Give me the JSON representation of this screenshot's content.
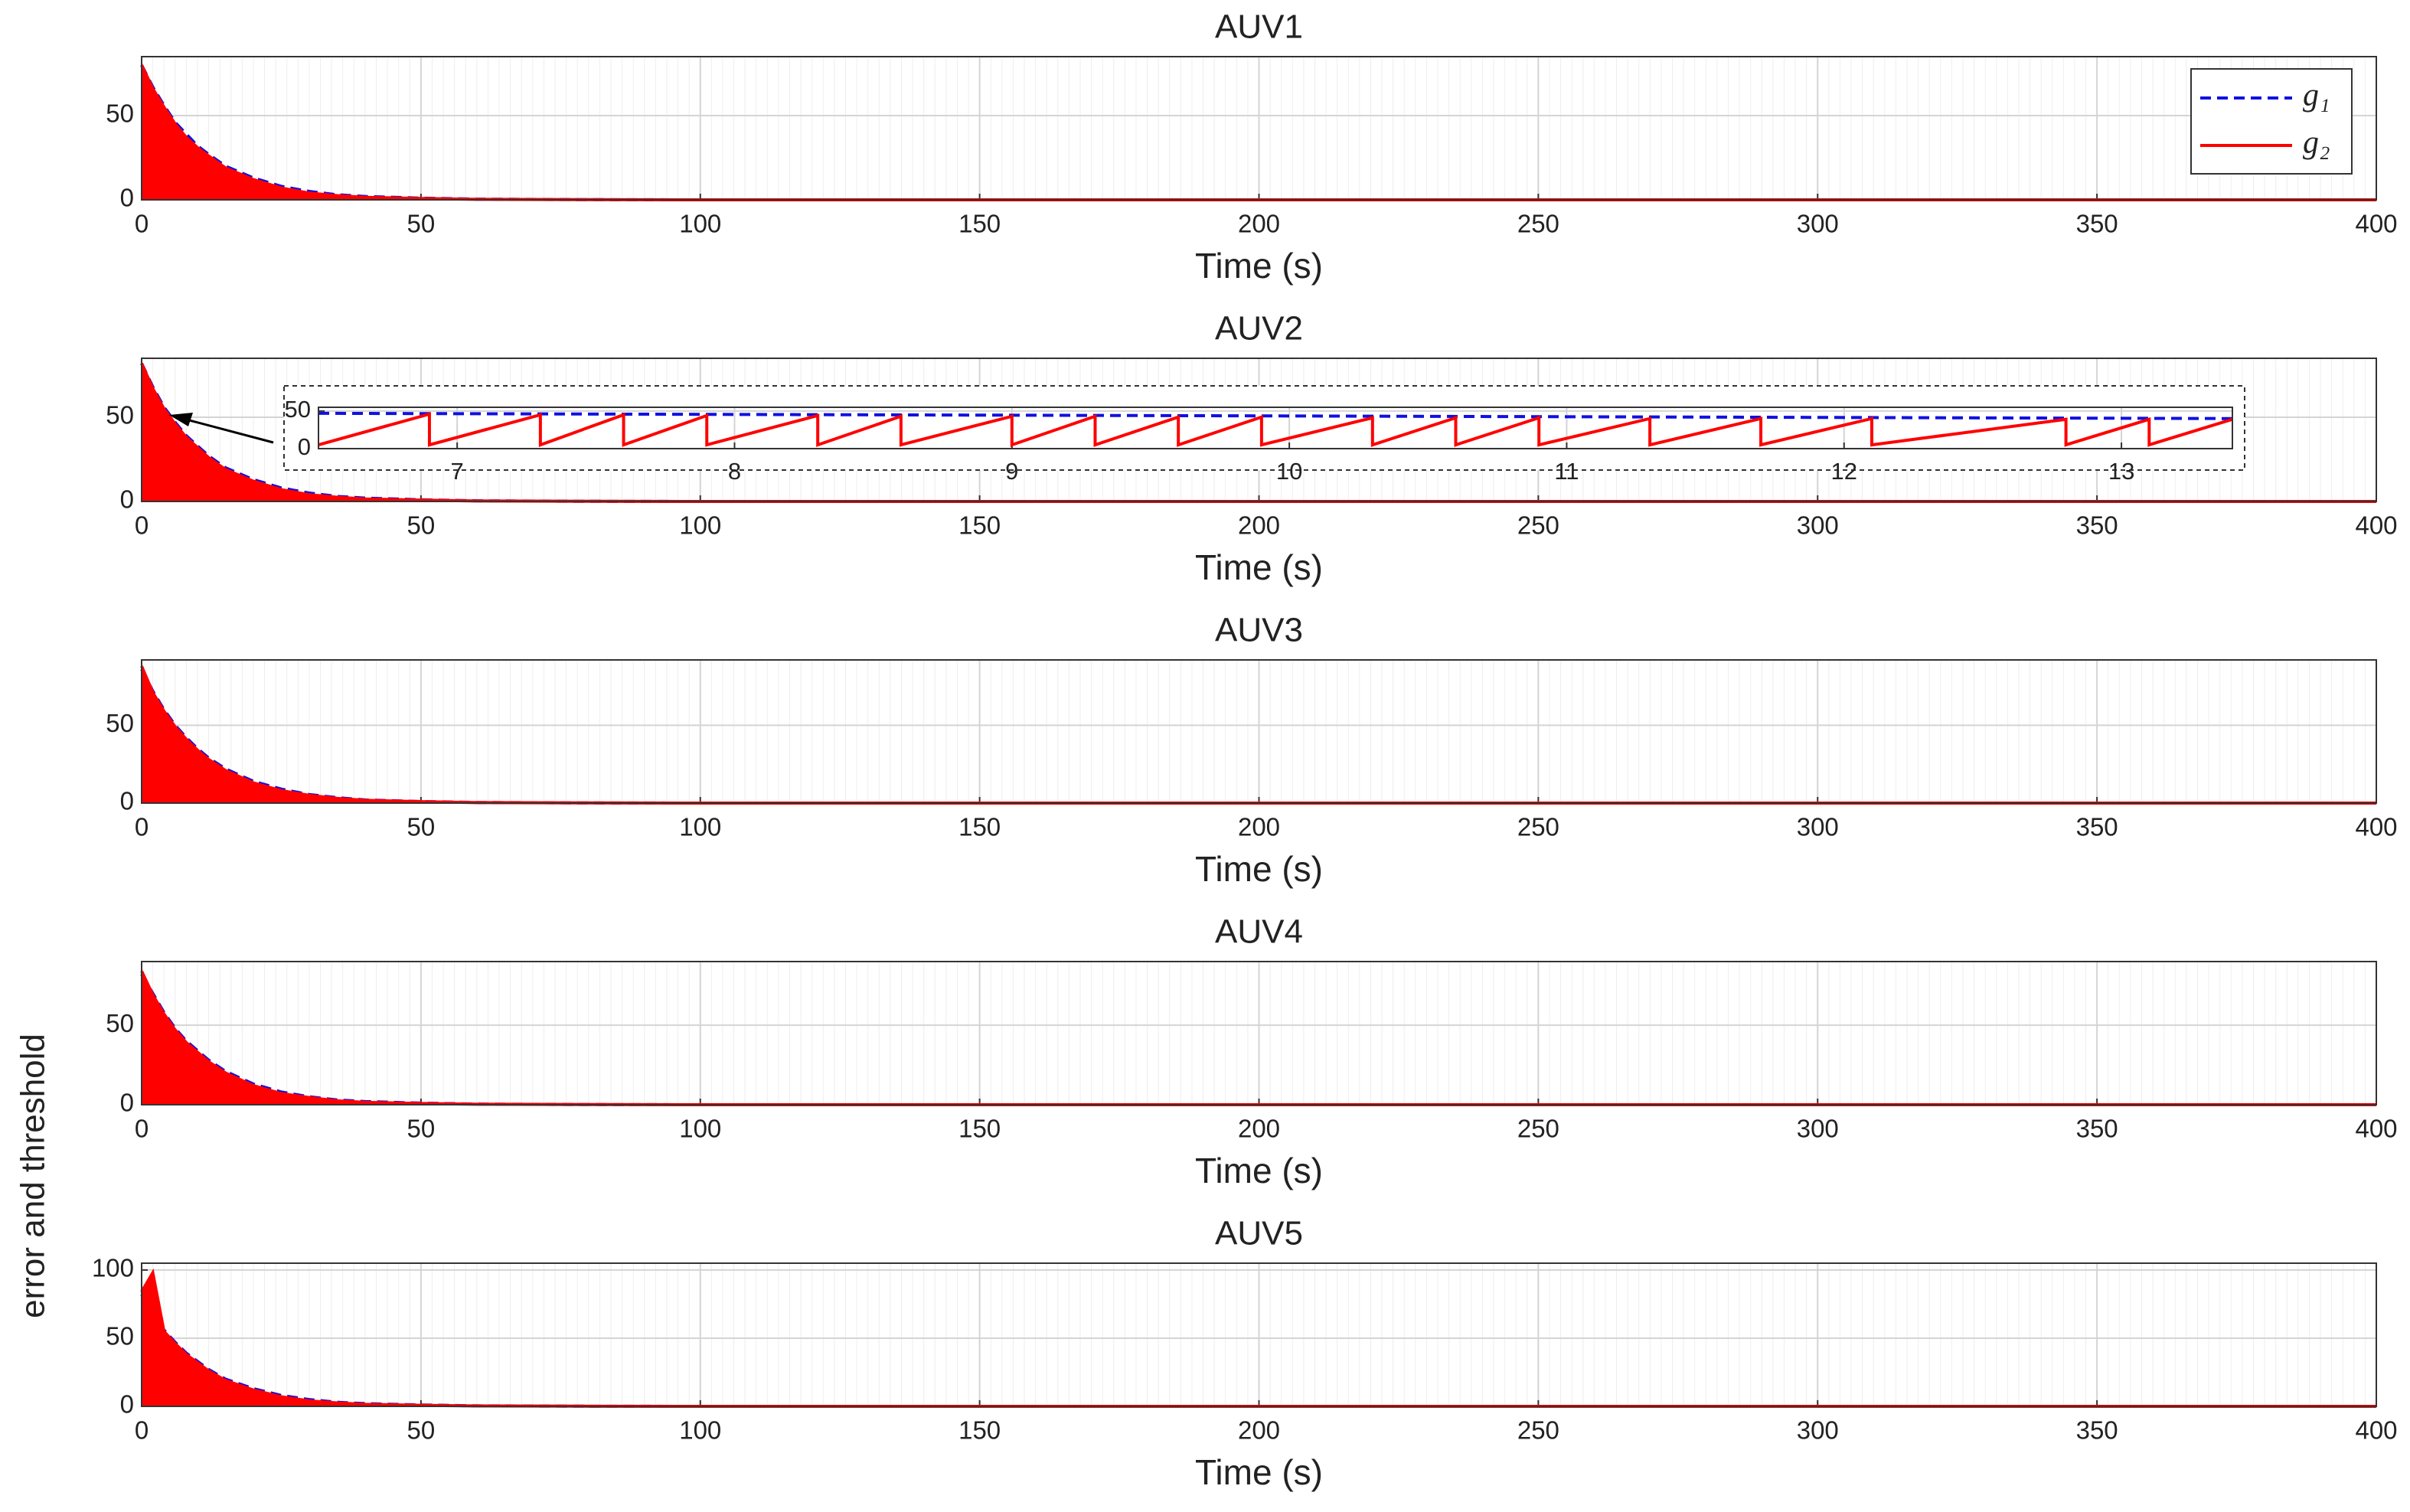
{
  "ylabel": "error and threshold",
  "chart_data": [
    {
      "type": "line",
      "title": "AUV1",
      "xlabel": "Time (s)",
      "xlim": [
        0,
        400
      ],
      "xticks": [
        0,
        50,
        100,
        150,
        200,
        250,
        300,
        350,
        400
      ],
      "ylim": [
        0,
        85
      ],
      "yticks": [
        0,
        50
      ],
      "grid": true,
      "legend": "upper right",
      "x": [
        0,
        2,
        4,
        6,
        8,
        10,
        12,
        15,
        20,
        25,
        30,
        35,
        40,
        50,
        60,
        80,
        100,
        150,
        200,
        250,
        300,
        350,
        400
      ],
      "series": [
        {
          "name": "g₁",
          "color": "#1010e0",
          "style": "dashed",
          "values": [
            80,
            67,
            56,
            46,
            39,
            32,
            27,
            20,
            13,
            8,
            5,
            3,
            2,
            1,
            0.4,
            0.1,
            0,
            0,
            0,
            0,
            0,
            0,
            0
          ]
        },
        {
          "name": "g₂",
          "color": "#ff0000",
          "style": "solid",
          "fill": true,
          "values": [
            80,
            66,
            55,
            45,
            37,
            31,
            26,
            19,
            12,
            7,
            4,
            2.5,
            1.5,
            0.8,
            0.3,
            0.1,
            0,
            0,
            0,
            0,
            0,
            0,
            0
          ]
        }
      ]
    },
    {
      "type": "line",
      "title": "AUV2",
      "xlabel": "Time (s)",
      "xlim": [
        0,
        400
      ],
      "xticks": [
        0,
        50,
        100,
        150,
        200,
        250,
        300,
        350,
        400
      ],
      "ylim": [
        0,
        85
      ],
      "yticks": [
        0,
        50
      ],
      "grid": true,
      "x": [
        0,
        2,
        4,
        6,
        8,
        10,
        12,
        15,
        20,
        25,
        30,
        35,
        40,
        50,
        60,
        80,
        100,
        150,
        200,
        250,
        300,
        350,
        400
      ],
      "series": [
        {
          "color": "#1010e0",
          "style": "dashed",
          "values": [
            82,
            68,
            56,
            47,
            39,
            33,
            27,
            20,
            13,
            8,
            5,
            3,
            2,
            1,
            0.4,
            0.1,
            0,
            0,
            0,
            0,
            0,
            0,
            0
          ]
        },
        {
          "color": "#ff0000",
          "style": "solid",
          "fill": true,
          "values": [
            82,
            67,
            55,
            46,
            38,
            32,
            26,
            19,
            12,
            7,
            4,
            2.5,
            1.5,
            0.8,
            0.3,
            0.1,
            0,
            0,
            0,
            0,
            0,
            0,
            0
          ]
        }
      ],
      "inset": {
        "xlim": [
          6.5,
          13.4
        ],
        "ylim": [
          0,
          55
        ],
        "xticks": [
          7,
          8,
          9,
          10,
          11,
          12,
          13
        ],
        "yticks": [
          0,
          50
        ],
        "grid": true,
        "series": [
          {
            "color": "#1010e0",
            "style": "dashed",
            "x": [
              6.5,
              13.4
            ],
            "values": [
              47,
              40
            ]
          },
          {
            "color": "#ff0000",
            "style": "solid",
            "x": [
              6.5,
              6.9,
              6.9,
              7.3,
              7.3,
              7.6,
              7.6,
              7.9,
              7.9,
              8.3,
              8.3,
              8.6,
              8.6,
              9.0,
              9.0,
              9.3,
              9.3,
              9.6,
              9.6,
              9.9,
              9.9,
              10.3,
              10.3,
              10.6,
              10.6,
              10.9,
              10.9,
              11.3,
              11.3,
              11.7,
              11.7,
              12.1,
              12.1,
              12.8,
              12.8,
              13.1,
              13.1,
              13.4
            ],
            "values": [
              5,
              46,
              5,
              45,
              5,
              45,
              5,
              44,
              5,
              44,
              5,
              43,
              5,
              43,
              5,
              43,
              5,
              42,
              5,
              42,
              5,
              41,
              5,
              41,
              5,
              41,
              5,
              40,
              5,
              40,
              5,
              40,
              5,
              39,
              5,
              39,
              5,
              39
            ]
          }
        ]
      }
    },
    {
      "type": "line",
      "title": "AUV3",
      "xlabel": "Time (s)",
      "xlim": [
        0,
        400
      ],
      "xticks": [
        0,
        50,
        100,
        150,
        200,
        250,
        300,
        350,
        400
      ],
      "ylim": [
        0,
        92
      ],
      "yticks": [
        0,
        50
      ],
      "grid": true,
      "x": [
        0,
        2,
        4,
        6,
        8,
        10,
        12,
        15,
        20,
        25,
        30,
        35,
        40,
        50,
        60,
        80,
        100,
        150,
        200,
        250,
        300,
        350,
        400
      ],
      "series": [
        {
          "color": "#1010e0",
          "style": "dashed",
          "values": [
            86,
            72,
            60,
            50,
            42,
            35,
            29,
            22,
            14,
            9,
            5.5,
            3.5,
            2,
            1,
            0.4,
            0.1,
            0,
            0,
            0,
            0,
            0,
            0,
            0
          ]
        },
        {
          "color": "#ff0000",
          "style": "solid",
          "fill": true,
          "values": [
            88,
            71,
            59,
            49,
            41,
            34,
            28,
            21,
            13,
            8,
            5,
            3,
            1.8,
            0.9,
            0.3,
            0.1,
            0,
            0,
            0,
            0,
            0,
            0,
            0
          ]
        }
      ]
    },
    {
      "type": "line",
      "title": "AUV4",
      "xlabel": "Time (s)",
      "xlim": [
        0,
        400
      ],
      "xticks": [
        0,
        50,
        100,
        150,
        200,
        250,
        300,
        350,
        400
      ],
      "ylim": [
        0,
        90
      ],
      "yticks": [
        0,
        50
      ],
      "grid": true,
      "x": [
        0,
        2,
        4,
        6,
        8,
        10,
        12,
        15,
        20,
        25,
        30,
        35,
        40,
        50,
        60,
        80,
        100,
        150,
        200,
        250,
        300,
        350,
        400
      ],
      "series": [
        {
          "color": "#1010e0",
          "style": "dashed",
          "values": [
            82,
            70,
            58,
            48,
            40,
            34,
            28,
            21,
            13,
            8,
            5,
            3,
            2,
            1,
            0.4,
            0.1,
            0,
            0,
            0,
            0,
            0,
            0,
            0
          ]
        },
        {
          "color": "#ff0000",
          "style": "solid",
          "fill": true,
          "values": [
            84,
            69,
            57,
            47,
            39,
            33,
            27,
            20,
            12,
            7,
            4.5,
            2.5,
            1.5,
            0.8,
            0.3,
            0.1,
            0,
            0,
            0,
            0,
            0,
            0,
            0
          ]
        }
      ]
    },
    {
      "type": "line",
      "title": "AUV5",
      "xlabel": "Time (s)",
      "xlim": [
        0,
        400
      ],
      "xticks": [
        0,
        50,
        100,
        150,
        200,
        250,
        300,
        350,
        400
      ],
      "ylim": [
        0,
        105
      ],
      "yticks": [
        0,
        50,
        100
      ],
      "grid": true,
      "x": [
        0,
        2,
        4,
        6,
        8,
        10,
        12,
        15,
        20,
        25,
        30,
        35,
        40,
        50,
        60,
        80,
        100,
        150,
        200,
        250,
        300,
        350,
        400
      ],
      "series": [
        {
          "color": "#1010e0",
          "style": "dashed",
          "values": [
            82,
            68,
            56,
            47,
            39,
            33,
            27,
            20,
            13,
            8,
            5,
            3,
            2,
            1,
            0.4,
            0.1,
            0,
            0,
            0,
            0,
            0,
            0,
            0
          ]
        },
        {
          "color": "#ff0000",
          "style": "solid",
          "fill": true,
          "values": [
            84,
            98,
            55,
            46,
            38,
            32,
            26,
            19,
            12,
            7,
            4,
            2.5,
            1.5,
            0.8,
            0.3,
            0.1,
            0,
            0,
            0,
            0,
            0,
            0,
            0
          ]
        }
      ]
    }
  ]
}
